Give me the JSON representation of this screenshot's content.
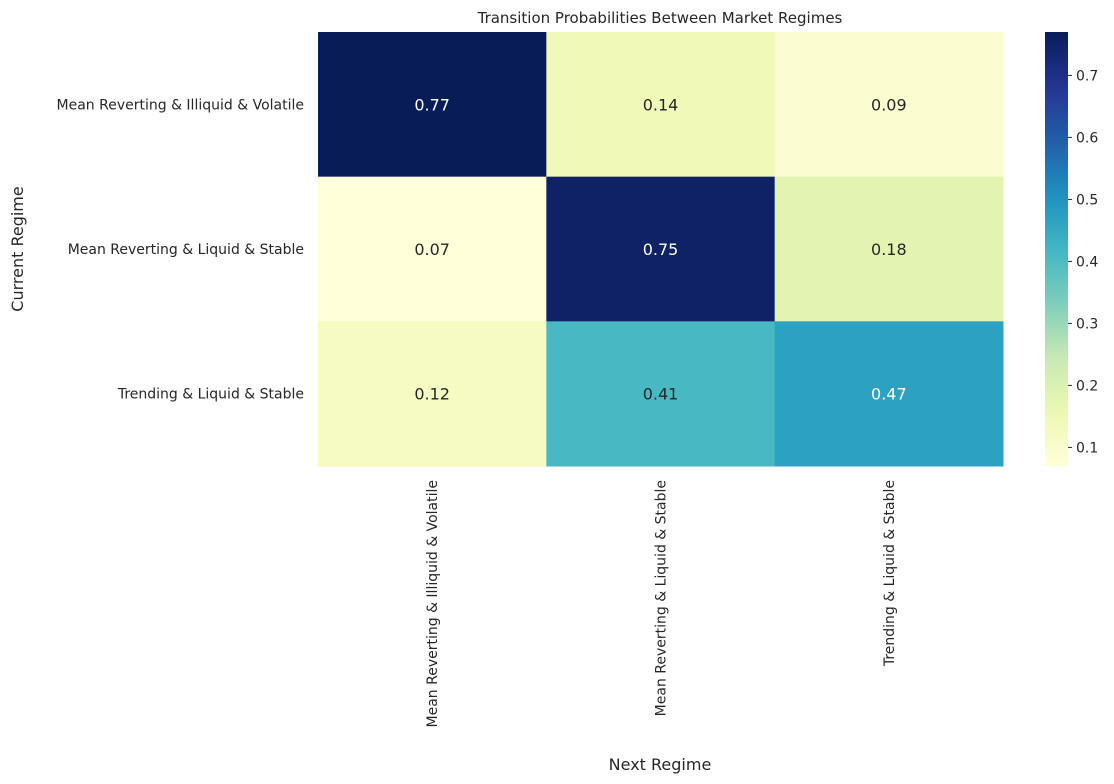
{
  "chart_data": {
    "type": "heatmap",
    "title": "Transition Probabilities Between Market Regimes",
    "xlabel": "Next Regime",
    "ylabel": "Current Regime",
    "rows": [
      "Mean Reverting & Illiquid & Volatile",
      "Mean Reverting & Liquid & Stable",
      "Trending & Liquid & Stable"
    ],
    "columns": [
      "Mean Reverting & Illiquid & Volatile",
      "Mean Reverting & Liquid & Stable",
      "Trending & Liquid & Stable"
    ],
    "values": [
      [
        0.77,
        0.14,
        0.09
      ],
      [
        0.07,
        0.75,
        0.18
      ],
      [
        0.12,
        0.41,
        0.47
      ]
    ],
    "cell_labels": [
      [
        "0.77",
        "0.14",
        "0.09"
      ],
      [
        "0.07",
        "0.75",
        "0.18"
      ],
      [
        "0.12",
        "0.41",
        "0.47"
      ]
    ],
    "colormap": "YlGnBu",
    "colorbar": {
      "min": 0.07,
      "max": 0.77,
      "ticks": [
        0.1,
        0.2,
        0.3,
        0.4,
        0.5,
        0.6,
        0.7
      ],
      "tick_labels": [
        "0.1",
        "0.2",
        "0.3",
        "0.4",
        "0.5",
        "0.6",
        "0.7"
      ]
    },
    "grid": false
  }
}
